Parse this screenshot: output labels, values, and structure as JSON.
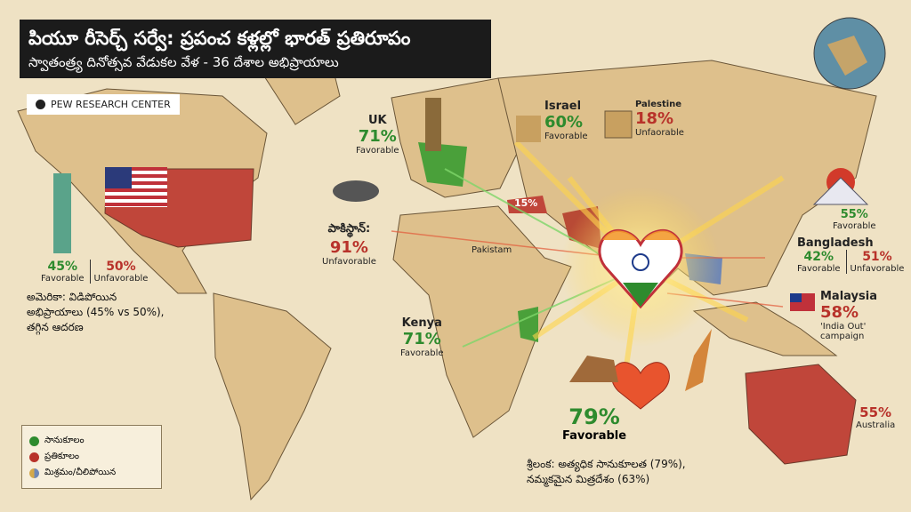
{
  "header": {
    "title": "పియూ రీసెర్చ్ సర్వే: ప్రపంచ కళ్లల్లో భారత్ ప్రతిరూపం",
    "subtitle": "స్వాతంత్ర్య దినోత్సవ వేడుకల వేళ - 36 దేశాల అభిప్రాయాలు",
    "source": "PEW RESEARCH CENTER"
  },
  "callouts": {
    "uk": {
      "country": "UK",
      "value": "71%",
      "label": "Favorable"
    },
    "israel": {
      "country": "Israel",
      "value": "60%",
      "label": "Favorable"
    },
    "palestine": {
      "country": "Palestine",
      "value": "18%",
      "label": "Unfaorable"
    },
    "japan": {
      "value": "55%",
      "label": "Favorable"
    },
    "bangladesh": {
      "country": "Bangladesh",
      "favorable": {
        "value": "42%",
        "label": "Favorable"
      },
      "unfavorable": {
        "value": "51%",
        "label": "Unfavorable"
      }
    },
    "malaysia": {
      "country": "Malaysia",
      "value": "58%",
      "label": "'India Out' campaign"
    },
    "australia": {
      "value": "55%",
      "country": "Australia"
    },
    "sri_lanka": {
      "value": "79%",
      "label": "Favorable",
      "note": [
        "శ్రీలంక: అత్యధిక సానుకూలత (79%),",
        "నమ్మకమైన మిత్రదేశం (63%)"
      ]
    },
    "kenya": {
      "country": "Kenya",
      "value": "71%",
      "label": "Favorable"
    },
    "pakistan": {
      "country": "పాకిస్థాన్:",
      "value": "91%",
      "label": "Unfavorable"
    },
    "usa": {
      "favorable": {
        "value": "45%",
        "label": "Favorable"
      },
      "unfavorable": {
        "value": "50%",
        "label": "Unfavorable"
      },
      "note": [
        "అమెరికా: విడిపోయిన",
        "అభిప్రాయాలు (45% vs 50%),",
        "తగ్గిన ఆదరణ"
      ]
    }
  },
  "map_labels": {
    "pakistan": "Pakistam",
    "turkey": "15%"
  },
  "legend": [
    "సానుకూలం",
    "ప్రతికూలం",
    "మిశ్రమం/చీలిపోయిన"
  ]
}
